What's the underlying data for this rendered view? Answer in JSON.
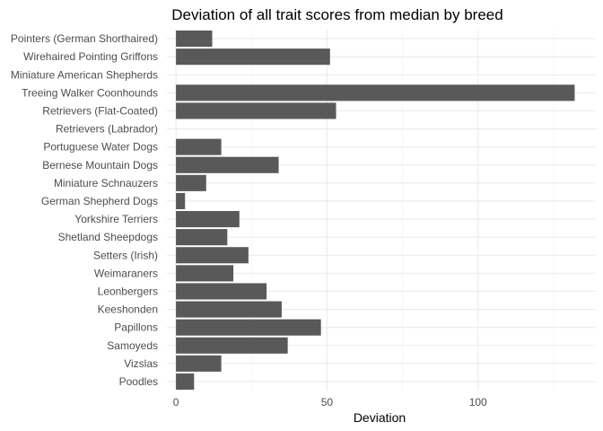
{
  "chart_data": {
    "type": "bar",
    "orientation": "horizontal",
    "title": "Deviation of all trait scores from median by breed",
    "xlabel": "Deviation",
    "ylabel": "",
    "categories": [
      "Pointers (German Shorthaired)",
      "Wirehaired Pointing Griffons",
      "Miniature American Shepherds",
      "Treeing Walker Coonhounds",
      "Retrievers (Flat-Coated)",
      "Retrievers (Labrador)",
      "Portuguese Water Dogs",
      "Bernese Mountain Dogs",
      "Miniature Schnauzers",
      "German Shepherd Dogs",
      "Yorkshire Terriers",
      "Shetland Sheepdogs",
      "Setters (Irish)",
      "Weimaraners",
      "Leonbergers",
      "Keeshonden",
      "Papillons",
      "Samoyeds",
      "Vizslas",
      "Poodles"
    ],
    "values": [
      12,
      51,
      0,
      132,
      53,
      0,
      15,
      34,
      10,
      3,
      21,
      17,
      24,
      19,
      30,
      35,
      48,
      37,
      15,
      6
    ],
    "xlim": [
      -3,
      139
    ],
    "xticks": [
      0,
      50,
      100
    ],
    "grid": true,
    "bar_color": "#595959",
    "grid_major_color": "#ebebeb",
    "grid_minor_color": "#f5f5f5"
  }
}
